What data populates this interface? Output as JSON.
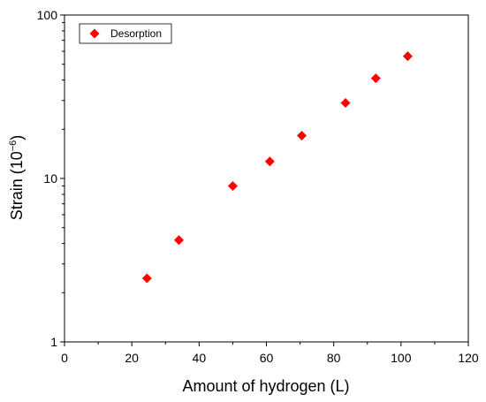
{
  "chart_data": {
    "type": "scatter",
    "title": "",
    "xlabel": "Amount of hydrogen (L)",
    "ylabel_main": "Strain (10",
    "ylabel_exp": "−6",
    "ylabel_close": ")",
    "x_scale": "linear",
    "y_scale": "log",
    "xlim": [
      0,
      120
    ],
    "ylim": [
      1,
      100
    ],
    "x_ticks": [
      "0",
      "20",
      "40",
      "60",
      "80",
      "100",
      "120"
    ],
    "y_ticks": [
      "1",
      "10",
      "100"
    ],
    "grid": false,
    "legend_position": "top-left",
    "series": [
      {
        "name": "Desorption",
        "marker": "diamond",
        "color": "#ff0000",
        "points": [
          {
            "x": 24.5,
            "y": 2.45
          },
          {
            "x": 34,
            "y": 4.2
          },
          {
            "x": 50,
            "y": 9.0
          },
          {
            "x": 61,
            "y": 12.7
          },
          {
            "x": 70.5,
            "y": 18.3
          },
          {
            "x": 83.5,
            "y": 29.0
          },
          {
            "x": 92.5,
            "y": 41.0
          },
          {
            "x": 102,
            "y": 56.0
          }
        ]
      }
    ]
  }
}
